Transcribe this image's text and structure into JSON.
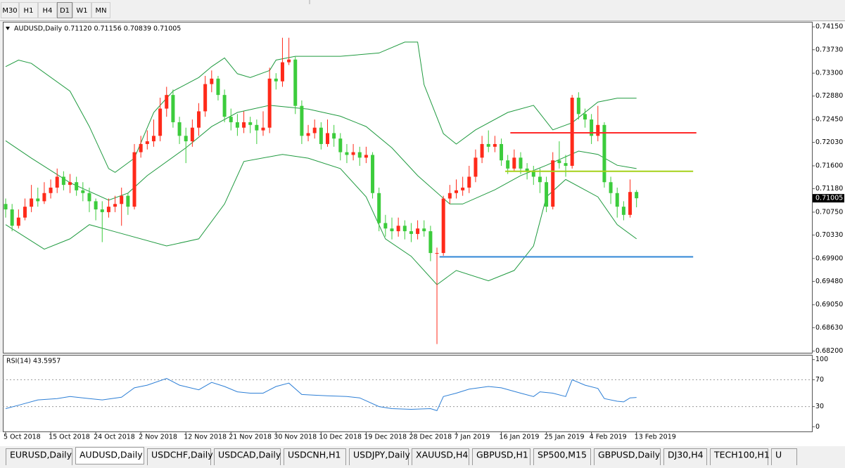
{
  "toolbar": {
    "timeframes": [
      "M30",
      "H1",
      "H4",
      "D1",
      "W1",
      "MN"
    ],
    "active_timeframe": 3
  },
  "chart_data": [
    {
      "type": "candlestick",
      "title": "AUDUSD,Daily  0.71120 0.71156 0.70839 0.71005",
      "up_color": "#ff2a1a",
      "down_color": "#3ccc3c",
      "open": [
        0.709,
        0.708,
        0.705,
        0.7065,
        0.7085,
        0.71,
        0.7095,
        0.711,
        0.712,
        0.714,
        0.7125,
        0.713,
        0.7115,
        0.711,
        0.7095,
        0.708,
        0.7075,
        0.7085,
        0.709,
        0.7105,
        0.7085,
        0.7185,
        0.72,
        0.7205,
        0.7215,
        0.7265,
        0.729,
        0.724,
        0.7215,
        0.7205,
        0.723,
        0.726,
        0.731,
        0.732,
        0.729,
        0.725,
        0.724,
        0.723,
        0.724,
        0.7235,
        0.7225,
        0.723,
        0.732,
        0.7315,
        0.735,
        0.7355,
        0.727,
        0.7215,
        0.722,
        0.723,
        0.72,
        0.722,
        0.721,
        0.7185,
        0.718,
        0.7185,
        0.7175,
        0.718,
        0.711,
        0.7055,
        0.7045,
        0.704,
        0.705,
        0.704,
        0.7035,
        0.7045,
        0.704,
        0.7,
        0.7,
        0.71,
        0.711,
        0.7115,
        0.712,
        0.714,
        0.7175,
        0.72,
        0.7195,
        0.72,
        0.717,
        0.7155,
        0.7175,
        0.7155,
        0.715,
        0.714,
        0.713,
        0.7085,
        0.717,
        0.7165,
        0.716,
        0.7285,
        0.7255,
        0.7245,
        0.7215,
        0.7235,
        0.713,
        0.711,
        0.7085,
        0.707,
        0.7112
      ],
      "high": [
        0.71,
        0.709,
        0.708,
        0.71,
        0.7125,
        0.712,
        0.713,
        0.7135,
        0.7155,
        0.715,
        0.7145,
        0.714,
        0.713,
        0.712,
        0.71,
        0.7095,
        0.71,
        0.7105,
        0.712,
        0.711,
        0.72,
        0.7215,
        0.7225,
        0.7245,
        0.7285,
        0.7305,
        0.73,
        0.725,
        0.723,
        0.7245,
        0.7275,
        0.7325,
        0.7335,
        0.7325,
        0.73,
        0.7265,
        0.7255,
        0.726,
        0.725,
        0.7245,
        0.726,
        0.734,
        0.733,
        0.7395,
        0.7395,
        0.736,
        0.728,
        0.7235,
        0.7245,
        0.724,
        0.7245,
        0.7235,
        0.722,
        0.72,
        0.72,
        0.7195,
        0.7195,
        0.7185,
        0.712,
        0.707,
        0.7065,
        0.7065,
        0.706,
        0.7055,
        0.706,
        0.706,
        0.705,
        0.701,
        0.7105,
        0.7125,
        0.7135,
        0.714,
        0.716,
        0.719,
        0.7215,
        0.7225,
        0.7215,
        0.721,
        0.718,
        0.719,
        0.7185,
        0.7165,
        0.716,
        0.7155,
        0.714,
        0.7185,
        0.7205,
        0.718,
        0.729,
        0.7295,
        0.7265,
        0.7255,
        0.727,
        0.724,
        0.714,
        0.712,
        0.7095,
        0.7135,
        0.71156
      ],
      "low": [
        0.7065,
        0.704,
        0.7045,
        0.706,
        0.7075,
        0.7085,
        0.709,
        0.71,
        0.711,
        0.7115,
        0.711,
        0.7105,
        0.7095,
        0.7075,
        0.706,
        0.702,
        0.7065,
        0.7075,
        0.705,
        0.707,
        0.708,
        0.7175,
        0.719,
        0.7195,
        0.7205,
        0.725,
        0.723,
        0.72,
        0.7165,
        0.7195,
        0.7215,
        0.725,
        0.7295,
        0.728,
        0.724,
        0.7225,
        0.7215,
        0.722,
        0.722,
        0.72,
        0.7215,
        0.722,
        0.73,
        0.7305,
        0.7345,
        0.7255,
        0.72,
        0.7205,
        0.721,
        0.719,
        0.7195,
        0.7195,
        0.717,
        0.7165,
        0.717,
        0.716,
        0.7165,
        0.71,
        0.704,
        0.703,
        0.7025,
        0.703,
        0.7025,
        0.702,
        0.7025,
        0.703,
        0.6985,
        0.6833,
        0.6995,
        0.709,
        0.71,
        0.7105,
        0.711,
        0.713,
        0.7165,
        0.7185,
        0.7185,
        0.716,
        0.7145,
        0.715,
        0.7145,
        0.7135,
        0.7125,
        0.711,
        0.7075,
        0.708,
        0.7155,
        0.714,
        0.7155,
        0.7245,
        0.723,
        0.72,
        0.7205,
        0.712,
        0.709,
        0.7065,
        0.706,
        0.7065,
        0.70839
      ],
      "close": [
        0.708,
        0.705,
        0.7065,
        0.7085,
        0.71,
        0.7095,
        0.711,
        0.712,
        0.714,
        0.7125,
        0.713,
        0.7115,
        0.711,
        0.7095,
        0.708,
        0.7075,
        0.7085,
        0.709,
        0.7105,
        0.7085,
        0.7185,
        0.72,
        0.7205,
        0.7215,
        0.7265,
        0.729,
        0.724,
        0.7215,
        0.7205,
        0.723,
        0.726,
        0.731,
        0.732,
        0.729,
        0.725,
        0.724,
        0.723,
        0.724,
        0.7235,
        0.7225,
        0.723,
        0.732,
        0.7315,
        0.735,
        0.7355,
        0.727,
        0.7215,
        0.722,
        0.723,
        0.72,
        0.722,
        0.721,
        0.7185,
        0.718,
        0.7185,
        0.7175,
        0.718,
        0.711,
        0.7055,
        0.7045,
        0.704,
        0.705,
        0.704,
        0.7035,
        0.7045,
        0.704,
        0.7,
        0.7,
        0.71,
        0.711,
        0.7115,
        0.712,
        0.714,
        0.7175,
        0.72,
        0.7195,
        0.72,
        0.717,
        0.7155,
        0.7175,
        0.7155,
        0.715,
        0.714,
        0.713,
        0.7085,
        0.717,
        0.7165,
        0.716,
        0.7285,
        0.7255,
        0.7245,
        0.7215,
        0.7235,
        0.713,
        0.711,
        0.7085,
        0.707,
        0.7112,
        0.71005
      ],
      "bands": {
        "color": "#1f9a3f",
        "upper": {
          "x": [
            0,
            2,
            4,
            10,
            13,
            16,
            17,
            20,
            23,
            26,
            30,
            32,
            34,
            36,
            38,
            41,
            42,
            45,
            52,
            58,
            62,
            64,
            65,
            68,
            70,
            73,
            78,
            82,
            85,
            88,
            92,
            95,
            98
          ],
          "values": [
            0.7342,
            0.7354,
            0.7348,
            0.7297,
            0.7232,
            0.7155,
            0.7148,
            0.7174,
            0.7258,
            0.7297,
            0.7322,
            0.7342,
            0.7358,
            0.7329,
            0.7322,
            0.7335,
            0.7354,
            0.7361,
            0.7361,
            0.7367,
            0.7387,
            0.7387,
            0.7309,
            0.7219,
            0.72,
            0.7226,
            0.7258,
            0.7271,
            0.7226,
            0.7239,
            0.7277,
            0.7284,
            0.7284
          ]
        },
        "middle": {
          "x": [
            0,
            4,
            10,
            16,
            19,
            22,
            28,
            32,
            36,
            41,
            47,
            52,
            56,
            60,
            64,
            69,
            71,
            76,
            80,
            84,
            89,
            92,
            95,
            98
          ],
          "values": [
            0.7206,
            0.7174,
            0.7129,
            0.7097,
            0.711,
            0.7142,
            0.7193,
            0.7232,
            0.7258,
            0.7271,
            0.7264,
            0.7251,
            0.7232,
            0.7193,
            0.7142,
            0.709,
            0.709,
            0.7116,
            0.7142,
            0.7161,
            0.7187,
            0.7181,
            0.7161,
            0.7155
          ]
        },
        "lower": {
          "x": [
            0,
            6,
            10,
            13,
            17,
            25,
            30,
            34,
            37,
            43,
            47,
            52,
            56,
            59,
            63,
            67,
            70,
            75,
            79,
            82,
            84,
            87,
            92,
            95,
            98
          ],
          "values": [
            0.7052,
            0.7007,
            0.7026,
            0.7052,
            0.7039,
            0.7013,
            0.7026,
            0.709,
            0.7168,
            0.7181,
            0.7174,
            0.7155,
            0.7103,
            0.7026,
            0.6994,
            0.6942,
            0.6968,
            0.6949,
            0.6968,
            0.7013,
            0.7103,
            0.7135,
            0.7103,
            0.7052,
            0.7026
          ]
        }
      },
      "hlines": [
        {
          "value": 0.72205,
          "color": "#ff2a2a",
          "x_from": 78.4,
          "x_to": 107.3
        },
        {
          "value": 0.715,
          "color": "#a6d11a",
          "x_from": 77.6,
          "x_to": 106.8
        },
        {
          "value": 0.6993,
          "color": "#2f86d6",
          "x_from": 67.4,
          "x_to": 106.8
        }
      ],
      "last_price": {
        "value": 0.71005,
        "label": "0.71005"
      },
      "xlim": [
        -0.44,
        125.25
      ],
      "ylim": [
        0.6817,
        0.7423
      ],
      "yticks": [
        {
          "value": 0.7415,
          "label": "0.74150"
        },
        {
          "value": 0.7373,
          "label": "0.73730"
        },
        {
          "value": 0.733,
          "label": "0.73300"
        },
        {
          "value": 0.7288,
          "label": "0.72880"
        },
        {
          "value": 0.7245,
          "label": "0.72450"
        },
        {
          "value": 0.7203,
          "label": "0.72030"
        },
        {
          "value": 0.716,
          "label": "0.71600"
        },
        {
          "value": 0.7118,
          "label": "0.71180"
        },
        {
          "value": 0.7075,
          "label": "0.70750"
        },
        {
          "value": 0.7033,
          "label": "0.70330"
        },
        {
          "value": 0.699,
          "label": "0.69900"
        },
        {
          "value": 0.6948,
          "label": "0.69480"
        },
        {
          "value": 0.6905,
          "label": "0.69050"
        },
        {
          "value": 0.6863,
          "label": "0.68630"
        },
        {
          "value": 0.682,
          "label": "0.68200"
        }
      ]
    },
    {
      "type": "line",
      "title": "RSI(14) 43.5957",
      "color": "#2d7fd6",
      "x": [
        0,
        2,
        5,
        8,
        10,
        13,
        15,
        18,
        20,
        22,
        25,
        27,
        30,
        32,
        34,
        36,
        38,
        40,
        42,
        44,
        46,
        48,
        50,
        53,
        55,
        58,
        60,
        63,
        66,
        67,
        68,
        70,
        72,
        75,
        77,
        80,
        82,
        83,
        85,
        87,
        88,
        90,
        92,
        93,
        95,
        96,
        97,
        98
      ],
      "values": [
        27,
        32,
        40,
        42,
        45,
        42,
        40,
        44,
        58,
        62,
        72,
        62,
        55,
        66,
        60,
        52,
        50,
        50,
        60,
        65,
        48,
        47,
        46,
        45,
        43,
        30,
        27,
        26,
        27,
        24,
        45,
        50,
        56,
        60,
        58,
        50,
        45,
        52,
        50,
        45,
        70,
        62,
        57,
        42,
        38,
        37,
        43,
        43.6
      ],
      "levels": [
        30,
        70
      ],
      "xlim": [
        -0.44,
        125.25
      ],
      "ylim": [
        -7,
        106
      ],
      "yticks": [
        0,
        30,
        70,
        100
      ],
      "xticks": [
        {
          "value": 0,
          "label": "5 Oct 2018"
        },
        {
          "value": 7,
          "label": "15 Oct 2018"
        },
        {
          "value": 14,
          "label": "24 Oct 2018"
        },
        {
          "value": 21,
          "label": "2 Nov 2018"
        },
        {
          "value": 28,
          "label": "12 Nov 2018"
        },
        {
          "value": 35,
          "label": "21 Nov 2018"
        },
        {
          "value": 42,
          "label": "30 Nov 2018"
        },
        {
          "value": 49,
          "label": "10 Dec 2018"
        },
        {
          "value": 56,
          "label": "19 Dec 2018"
        },
        {
          "value": 63,
          "label": "28 Dec 2018"
        },
        {
          "value": 70,
          "label": "7 Jan 2019"
        },
        {
          "value": 77,
          "label": "16 Jan 2019"
        },
        {
          "value": 84,
          "label": "25 Jan 2019"
        },
        {
          "value": 91,
          "label": "4 Feb 2019"
        },
        {
          "value": 98,
          "label": "13 Feb 2019"
        }
      ]
    }
  ],
  "tabs": [
    "EURUSD,Daily",
    "AUDUSD,Daily",
    "USDCHF,Daily",
    "USDCAD,Daily",
    "USDCNH,H1",
    "USDJPY,Daily",
    "XAUUSD,H4",
    "GBPUSD,H1",
    "SP500,M15",
    "GBPUSD,Daily",
    "DJ30,H4",
    "TECH100,H1",
    "U"
  ],
  "active_tab": 1
}
